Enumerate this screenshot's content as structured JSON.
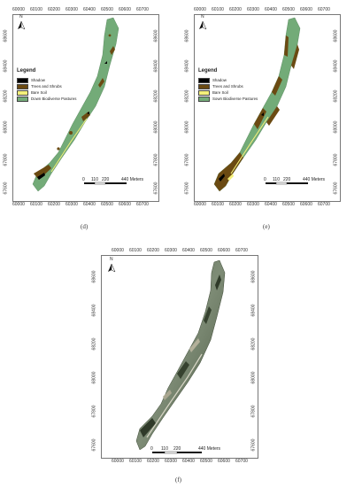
{
  "panels": [
    {
      "id": "d",
      "caption": "(d)",
      "x_ticks": [
        "60000",
        "60100",
        "60200",
        "60300",
        "60400",
        "60500",
        "60600",
        "60700"
      ],
      "y_ticks": [
        "68600",
        "68400",
        "68200",
        "68000",
        "67800",
        "67600"
      ],
      "legend_title": "Legend",
      "legend": [
        {
          "label": "Shadow",
          "color": "#000000"
        },
        {
          "label": "Trees and Shrubs",
          "color": "#6b4a12"
        },
        {
          "label": "Bare Soil",
          "color": "#f4f07a"
        },
        {
          "label": "Down Biodiverse Pastures",
          "color": "#73ab78"
        }
      ],
      "scale": [
        "0",
        "110",
        "220",
        "440 Meters"
      ]
    },
    {
      "id": "e",
      "caption": "(e)",
      "x_ticks": [
        "60000",
        "60100",
        "60200",
        "60300",
        "60400",
        "60500",
        "60600",
        "60700"
      ],
      "y_ticks": [
        "68600",
        "68400",
        "68200",
        "68000",
        "67800",
        "67600"
      ],
      "legend_title": "Legend",
      "legend": [
        {
          "label": "Shadow",
          "color": "#000000"
        },
        {
          "label": "Trees and Shrubs",
          "color": "#6b4a12"
        },
        {
          "label": "Bare Soil",
          "color": "#f4f07a"
        },
        {
          "label": "Sown Biodiverse Pastures",
          "color": "#73ab78"
        }
      ],
      "scale": [
        "0",
        "110",
        "220",
        "440 Meters"
      ]
    },
    {
      "id": "f",
      "caption": "(f)",
      "x_ticks": [
        "60000",
        "60100",
        "60200",
        "60300",
        "60400",
        "60500",
        "60600",
        "60700"
      ],
      "y_ticks": [
        "68600",
        "68400",
        "68200",
        "68000",
        "67800",
        "67600"
      ],
      "scale": [
        "0",
        "110",
        "220",
        "440 Meters"
      ]
    }
  ],
  "north_label": "N",
  "colors": {
    "pasture": "#73ab78",
    "trees": "#6b4a12",
    "shadow": "#000000",
    "soil": "#f4f07a",
    "photo_dark": "#4e5a45",
    "photo_light": "#8d9a84"
  }
}
